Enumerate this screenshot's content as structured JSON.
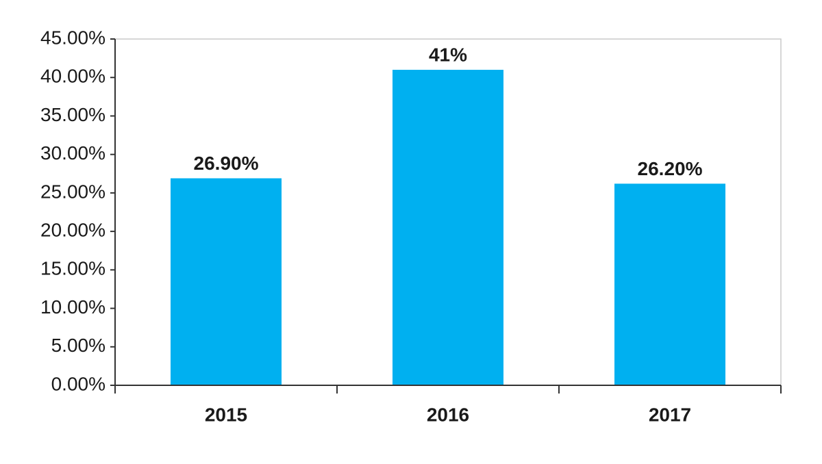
{
  "chart_data": {
    "type": "bar",
    "categories": [
      "2015",
      "2016",
      "2017"
    ],
    "values": [
      26.9,
      41,
      26.2
    ],
    "value_labels": [
      "26.90%",
      "41%",
      "26.20%"
    ],
    "color": "#00b0f0",
    "ylim": [
      0,
      45
    ],
    "yticks": [
      {
        "value": 0,
        "label": "0.00%"
      },
      {
        "value": 5,
        "label": "5.00%"
      },
      {
        "value": 10,
        "label": "10.00%"
      },
      {
        "value": 15,
        "label": "15.00%"
      },
      {
        "value": 20,
        "label": "20.00%"
      },
      {
        "value": 25,
        "label": "25.00%"
      },
      {
        "value": 30,
        "label": "30.00%"
      },
      {
        "value": 35,
        "label": "35.00%"
      },
      {
        "value": 40,
        "label": "40.00%"
      },
      {
        "value": 45,
        "label": "45.00%"
      }
    ],
    "grid": false
  }
}
